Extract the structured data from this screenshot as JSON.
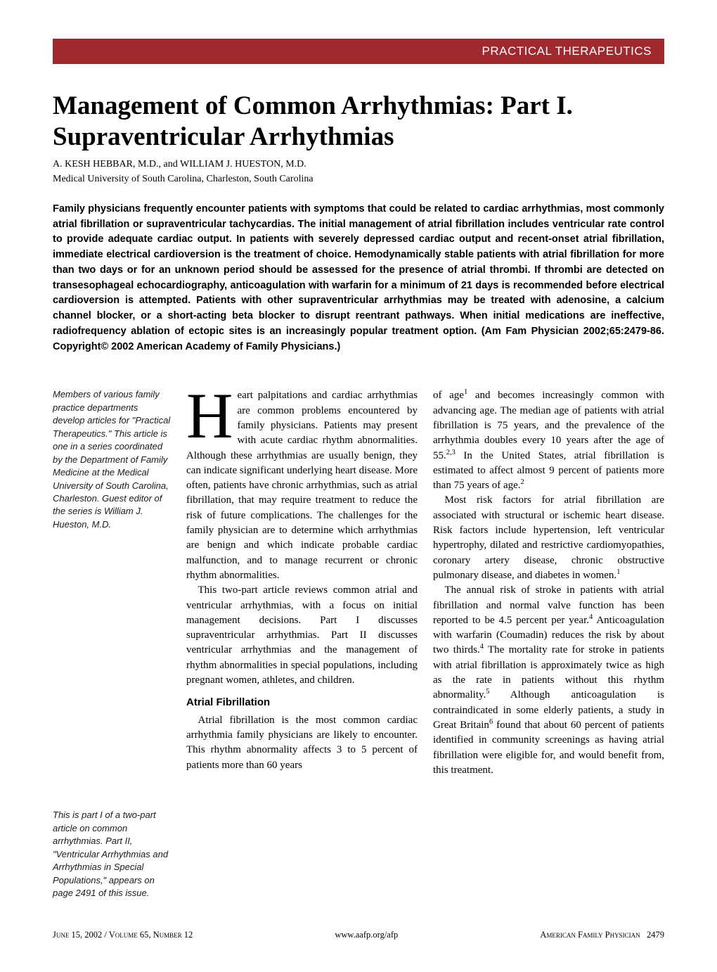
{
  "header": {
    "section": "PRACTICAL THERAPEUTICS",
    "background_color": "#a0282f",
    "text_color": "#ffffff"
  },
  "title": "Management of Common Arrhythmias: Part I. Supraventricular Arrhythmias",
  "authors_line1": "A. KESH HEBBAR, M.D., and WILLIAM J. HUESTON, M.D.",
  "authors_line2": "Medical University of South Carolina, Charleston, South Carolina",
  "abstract": "Family physicians frequently encounter patients with symptoms that could be related to cardiac arrhythmias, most commonly atrial fibrillation or supraventricular tachycardias. The initial management of atrial fibrillation includes ventricular rate control to provide adequate cardiac output. In patients with severely depressed cardiac output and recent-onset atrial fibrillation, immediate electrical cardioversion is the treatment of choice. Hemodynamically stable patients with atrial fibrillation for more than two days or for an unknown period should be assessed for the presence of atrial thrombi. If thrombi are detected on transesophageal echocardiography, anticoagulation with warfarin for a minimum of 21 days is recommended before electrical cardioversion is attempted. Patients with other supraventricular arrhythmias may be treated with adenosine, a calcium channel blocker, or a short-acting beta blocker to disrupt reentrant pathways. When initial medications are ineffective, radiofrequency ablation of ectopic sites is an increasingly popular treatment option. (Am Fam Physician 2002;65:2479-86. Copyright© 2002 American Academy of Family Physicians.)",
  "sidenote1": "Members of various family practice departments develop articles for \"Practical Therapeutics.\" This article is one in a series coordinated by the Department of Family Medicine at the Medical University of South Carolina, Charleston. Guest editor of the series is William J. Hueston, M.D.",
  "sidenote2": "This is part I of a two-part article on common arrhythmias. Part II, \"Ventricular Arrhythmias and Arrhythmias in Special Populations,\" appears on page 2491 of this issue.",
  "body": {
    "dropcap": "H",
    "p1": "eart palpitations and cardiac arrhythmias are common problems encountered by family physicians. Patients may present with acute cardiac rhythm abnormalities. Although these arrhythmias are usually benign, they can indicate significant underlying heart disease. More often, patients have chronic arrhythmias, such as atrial fibrillation, that may require treatment to reduce the risk of future complications. The challenges for the family physician are to determine which arrhythmias are benign and which indicate probable cardiac malfunction, and to manage recurrent or chronic rhythm abnormalities.",
    "p2": "This two-part article reviews common atrial and ventricular arrhythmias, with a focus on initial management decisions. Part I discusses supraventricular arrhythmias. Part II discusses ventricular arrhythmias and the management of rhythm abnormalities in special populations, including pregnant women, athletes, and children.",
    "h2_1": "Atrial Fibrillation",
    "p3": "Atrial fibrillation is the most common cardiac arrhythmia family physicians are likely to encounter. This rhythm abnormality affects 3 to 5 percent of patients more than 60 years",
    "p4a": "of age",
    "p4b": " and becomes increasingly common with advancing age. The median age of patients with atrial fibrillation is 75 years, and the prevalence of the arrhythmia doubles every 10 years after the age of 55.",
    "p4c": " In the United States, atrial fibrillation is estimated to affect almost 9 percent of patients more than 75 years of age.",
    "p5a": "Most risk factors for atrial fibrillation are associated with structural or ischemic heart disease. Risk factors include hypertension, left ventricular hypertrophy, dilated and restrictive cardiomyopathies, coronary artery disease, chronic obstructive pulmonary disease, and diabetes in women.",
    "p6a": "The annual risk of stroke in patients with atrial fibrillation and normal valve function has been reported to be 4.5 percent per year.",
    "p6b": " Anticoagulation with warfarin (Coumadin) reduces the risk by about two thirds.",
    "p6c": " The mortality rate for stroke in patients with atrial fibrillation is approximately twice as high as the rate in patients without this rhythm abnormality.",
    "p6d": " Although anticoagulation is contraindicated in some elderly patients, a study in Great Britain",
    "p6e": " found that about 60 percent of patients identified in community screenings as having atrial fibrillation were eligible for, and would benefit from, this treatment.",
    "ref1": "1",
    "ref23": "2,3",
    "ref2": "2",
    "ref4": "4",
    "ref5": "5",
    "ref6": "6"
  },
  "footer": {
    "left": "June 15, 2002 / Volume 65, Number 12",
    "center": "www.aafp.org/afp",
    "right_label": "American Family Physician",
    "right_page": "2479"
  },
  "style": {
    "page_bg": "#ffffff",
    "text_color": "#000000",
    "title_fontsize": 37,
    "abstract_fontsize": 14.5,
    "body_fontsize": 15,
    "sidenote_fontsize": 13,
    "dropcap_fontsize": 92,
    "column_gap": 22,
    "sidecol_width": 168
  }
}
